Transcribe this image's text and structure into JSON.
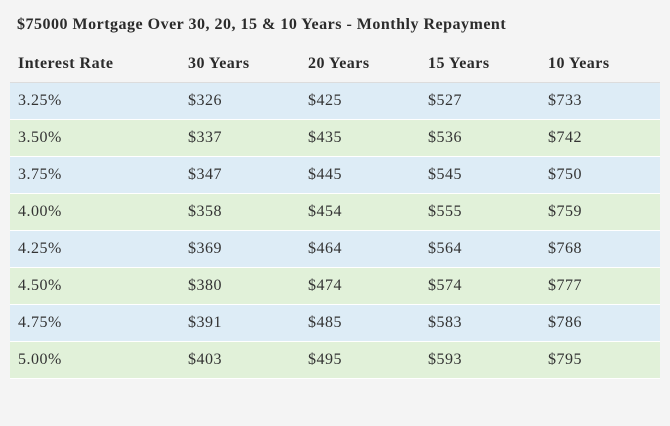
{
  "caption": "$75000 Mortgage Over 30, 20, 15 & 10 Years - Monthly Repayment",
  "colors": {
    "row_blue": "#ddecf6",
    "row_green": "#e1f1d9",
    "header_bg": "#f4f4f4"
  },
  "headers": [
    "Interest Rate",
    "30 Years",
    "20 Years",
    "15 Years",
    "10 Years"
  ],
  "rows": [
    [
      "3.25%",
      "$326",
      "$425",
      "$527",
      "$733"
    ],
    [
      "3.50%",
      "$337",
      "$435",
      "$536",
      "$742"
    ],
    [
      "3.75%",
      "$347",
      "$445",
      "$545",
      "$750"
    ],
    [
      "4.00%",
      "$358",
      "$454",
      "$555",
      "$759"
    ],
    [
      "4.25%",
      "$369",
      "$464",
      "$564",
      "$768"
    ],
    [
      "4.50%",
      "$380",
      "$474",
      "$574",
      "$777"
    ],
    [
      "4.75%",
      "$391",
      "$485",
      "$583",
      "$786"
    ],
    [
      "5.00%",
      "$403",
      "$495",
      "$593",
      "$795"
    ]
  ]
}
